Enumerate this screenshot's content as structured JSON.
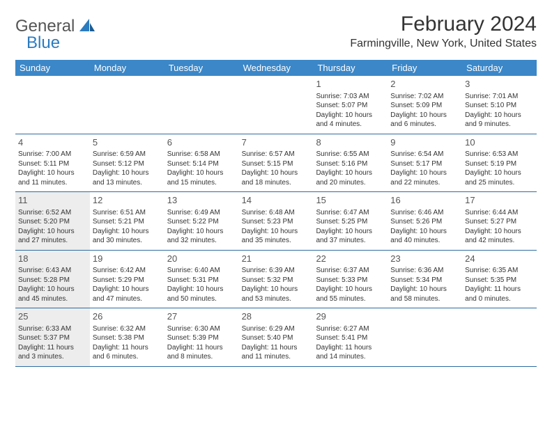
{
  "logo": {
    "text1": "General",
    "text2": "Blue",
    "icon_color": "#2b7bbf"
  },
  "title": "February 2024",
  "location": "Farmingville, New York, United States",
  "header_bg": "#3b87c8",
  "border_color": "#2b6ca3",
  "shaded_bg": "#ededed",
  "day_headers": [
    "Sunday",
    "Monday",
    "Tuesday",
    "Wednesday",
    "Thursday",
    "Friday",
    "Saturday"
  ],
  "weeks": [
    [
      null,
      null,
      null,
      null,
      {
        "n": "1",
        "sunrise": "Sunrise: 7:03 AM",
        "sunset": "Sunset: 5:07 PM",
        "daylight": "Daylight: 10 hours and 4 minutes.",
        "shaded": false
      },
      {
        "n": "2",
        "sunrise": "Sunrise: 7:02 AM",
        "sunset": "Sunset: 5:09 PM",
        "daylight": "Daylight: 10 hours and 6 minutes.",
        "shaded": false
      },
      {
        "n": "3",
        "sunrise": "Sunrise: 7:01 AM",
        "sunset": "Sunset: 5:10 PM",
        "daylight": "Daylight: 10 hours and 9 minutes.",
        "shaded": false
      }
    ],
    [
      {
        "n": "4",
        "sunrise": "Sunrise: 7:00 AM",
        "sunset": "Sunset: 5:11 PM",
        "daylight": "Daylight: 10 hours and 11 minutes.",
        "shaded": false
      },
      {
        "n": "5",
        "sunrise": "Sunrise: 6:59 AM",
        "sunset": "Sunset: 5:12 PM",
        "daylight": "Daylight: 10 hours and 13 minutes.",
        "shaded": false
      },
      {
        "n": "6",
        "sunrise": "Sunrise: 6:58 AM",
        "sunset": "Sunset: 5:14 PM",
        "daylight": "Daylight: 10 hours and 15 minutes.",
        "shaded": false
      },
      {
        "n": "7",
        "sunrise": "Sunrise: 6:57 AM",
        "sunset": "Sunset: 5:15 PM",
        "daylight": "Daylight: 10 hours and 18 minutes.",
        "shaded": false
      },
      {
        "n": "8",
        "sunrise": "Sunrise: 6:55 AM",
        "sunset": "Sunset: 5:16 PM",
        "daylight": "Daylight: 10 hours and 20 minutes.",
        "shaded": false
      },
      {
        "n": "9",
        "sunrise": "Sunrise: 6:54 AM",
        "sunset": "Sunset: 5:17 PM",
        "daylight": "Daylight: 10 hours and 22 minutes.",
        "shaded": false
      },
      {
        "n": "10",
        "sunrise": "Sunrise: 6:53 AM",
        "sunset": "Sunset: 5:19 PM",
        "daylight": "Daylight: 10 hours and 25 minutes.",
        "shaded": false
      }
    ],
    [
      {
        "n": "11",
        "sunrise": "Sunrise: 6:52 AM",
        "sunset": "Sunset: 5:20 PM",
        "daylight": "Daylight: 10 hours and 27 minutes.",
        "shaded": true
      },
      {
        "n": "12",
        "sunrise": "Sunrise: 6:51 AM",
        "sunset": "Sunset: 5:21 PM",
        "daylight": "Daylight: 10 hours and 30 minutes.",
        "shaded": false
      },
      {
        "n": "13",
        "sunrise": "Sunrise: 6:49 AM",
        "sunset": "Sunset: 5:22 PM",
        "daylight": "Daylight: 10 hours and 32 minutes.",
        "shaded": false
      },
      {
        "n": "14",
        "sunrise": "Sunrise: 6:48 AM",
        "sunset": "Sunset: 5:23 PM",
        "daylight": "Daylight: 10 hours and 35 minutes.",
        "shaded": false
      },
      {
        "n": "15",
        "sunrise": "Sunrise: 6:47 AM",
        "sunset": "Sunset: 5:25 PM",
        "daylight": "Daylight: 10 hours and 37 minutes.",
        "shaded": false
      },
      {
        "n": "16",
        "sunrise": "Sunrise: 6:46 AM",
        "sunset": "Sunset: 5:26 PM",
        "daylight": "Daylight: 10 hours and 40 minutes.",
        "shaded": false
      },
      {
        "n": "17",
        "sunrise": "Sunrise: 6:44 AM",
        "sunset": "Sunset: 5:27 PM",
        "daylight": "Daylight: 10 hours and 42 minutes.",
        "shaded": false
      }
    ],
    [
      {
        "n": "18",
        "sunrise": "Sunrise: 6:43 AM",
        "sunset": "Sunset: 5:28 PM",
        "daylight": "Daylight: 10 hours and 45 minutes.",
        "shaded": true
      },
      {
        "n": "19",
        "sunrise": "Sunrise: 6:42 AM",
        "sunset": "Sunset: 5:29 PM",
        "daylight": "Daylight: 10 hours and 47 minutes.",
        "shaded": false
      },
      {
        "n": "20",
        "sunrise": "Sunrise: 6:40 AM",
        "sunset": "Sunset: 5:31 PM",
        "daylight": "Daylight: 10 hours and 50 minutes.",
        "shaded": false
      },
      {
        "n": "21",
        "sunrise": "Sunrise: 6:39 AM",
        "sunset": "Sunset: 5:32 PM",
        "daylight": "Daylight: 10 hours and 53 minutes.",
        "shaded": false
      },
      {
        "n": "22",
        "sunrise": "Sunrise: 6:37 AM",
        "sunset": "Sunset: 5:33 PM",
        "daylight": "Daylight: 10 hours and 55 minutes.",
        "shaded": false
      },
      {
        "n": "23",
        "sunrise": "Sunrise: 6:36 AM",
        "sunset": "Sunset: 5:34 PM",
        "daylight": "Daylight: 10 hours and 58 minutes.",
        "shaded": false
      },
      {
        "n": "24",
        "sunrise": "Sunrise: 6:35 AM",
        "sunset": "Sunset: 5:35 PM",
        "daylight": "Daylight: 11 hours and 0 minutes.",
        "shaded": false
      }
    ],
    [
      {
        "n": "25",
        "sunrise": "Sunrise: 6:33 AM",
        "sunset": "Sunset: 5:37 PM",
        "daylight": "Daylight: 11 hours and 3 minutes.",
        "shaded": true
      },
      {
        "n": "26",
        "sunrise": "Sunrise: 6:32 AM",
        "sunset": "Sunset: 5:38 PM",
        "daylight": "Daylight: 11 hours and 6 minutes.",
        "shaded": false
      },
      {
        "n": "27",
        "sunrise": "Sunrise: 6:30 AM",
        "sunset": "Sunset: 5:39 PM",
        "daylight": "Daylight: 11 hours and 8 minutes.",
        "shaded": false
      },
      {
        "n": "28",
        "sunrise": "Sunrise: 6:29 AM",
        "sunset": "Sunset: 5:40 PM",
        "daylight": "Daylight: 11 hours and 11 minutes.",
        "shaded": false
      },
      {
        "n": "29",
        "sunrise": "Sunrise: 6:27 AM",
        "sunset": "Sunset: 5:41 PM",
        "daylight": "Daylight: 11 hours and 14 minutes.",
        "shaded": false
      },
      null,
      null
    ]
  ]
}
